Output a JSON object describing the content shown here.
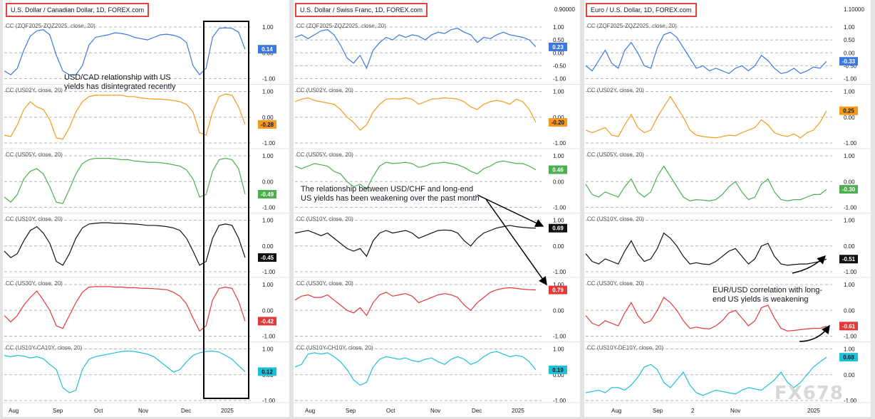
{
  "colors": {
    "ZQ": "#3c78e0",
    "US02Y": "#f39a1e",
    "US05Y": "#4caf50",
    "US10Y": "#111111",
    "US30Y": "#e2393b",
    "SPREAD": "#1ec0d6",
    "badge_text_dark": "#ffffff"
  },
  "watermark": "FX678",
  "chart_data": [
    {
      "type": "line",
      "title": "U.S. Dollar / Canadian Dollar, 1D, FOREX.com",
      "top_price": "",
      "x_ticks": [
        "Aug",
        "Sep",
        "Oct",
        "Nov",
        "Dec",
        "2025"
      ],
      "annotations": [
        "USD/CAD relationship with US",
        "yields has disintegrated recently"
      ],
      "subplots": [
        {
          "name": "CC (ZQF2025-ZQZ2025, close, 20)",
          "color_key": "ZQ",
          "ylim": [
            -1,
            1
          ],
          "ticks": [
            "1.00",
            "0.00",
            "-1.00"
          ],
          "last": "0.14",
          "values": [
            -0.7,
            -0.85,
            -0.6,
            0.1,
            0.65,
            0.85,
            0.9,
            0.7,
            -0.1,
            -0.7,
            -0.85,
            -0.85,
            -0.5,
            0.3,
            0.6,
            0.65,
            0.7,
            0.78,
            0.75,
            0.7,
            0.6,
            0.55,
            0.5,
            0.6,
            0.7,
            0.72,
            0.68,
            0.6,
            0.4,
            -0.5,
            -0.85,
            -0.6,
            0.6,
            0.95,
            0.97,
            0.95,
            0.8,
            0.14
          ]
        },
        {
          "name": "CC (US02Y, close, 20)",
          "color_key": "US02Y",
          "ylim": [
            -1,
            1
          ],
          "ticks": [
            "1.00",
            "0.00",
            "-1.00"
          ],
          "last": "-0.28",
          "values": [
            -0.7,
            -0.75,
            -0.3,
            0.3,
            0.6,
            0.4,
            0.3,
            -0.1,
            -0.8,
            -0.85,
            -0.4,
            0.2,
            0.6,
            0.8,
            0.85,
            0.85,
            0.85,
            0.85,
            0.85,
            0.8,
            0.8,
            0.75,
            0.72,
            0.7,
            0.7,
            0.68,
            0.65,
            0.6,
            0.5,
            0.2,
            -0.6,
            -0.7,
            0.2,
            0.8,
            0.9,
            0.85,
            0.4,
            -0.28
          ]
        },
        {
          "name": "CC (US05Y, close, 20)",
          "color_key": "US05Y",
          "ylim": [
            -1,
            1
          ],
          "ticks": [
            "1.00",
            "0.00",
            "-1.00"
          ],
          "last": "-0.49",
          "values": [
            -0.6,
            -0.8,
            -0.5,
            0.1,
            0.4,
            0.5,
            0.3,
            -0.2,
            -0.8,
            -0.85,
            -0.3,
            0.3,
            0.7,
            0.85,
            0.9,
            0.9,
            0.9,
            0.88,
            0.85,
            0.85,
            0.8,
            0.78,
            0.75,
            0.75,
            0.73,
            0.7,
            0.65,
            0.6,
            0.45,
            0.1,
            -0.6,
            -0.5,
            0.4,
            0.85,
            0.9,
            0.85,
            0.5,
            -0.49
          ]
        },
        {
          "name": "CC (US10Y, close, 20)",
          "color_key": "US10Y",
          "ylim": [
            -1,
            1
          ],
          "ticks": [
            "1.00",
            "0.00",
            "-1.00"
          ],
          "last": "-0.45",
          "values": [
            -0.2,
            -0.45,
            -0.3,
            0.2,
            0.6,
            0.75,
            0.5,
            0.1,
            -0.6,
            -0.75,
            -0.3,
            0.3,
            0.7,
            0.85,
            0.88,
            0.9,
            0.9,
            0.88,
            0.88,
            0.86,
            0.85,
            0.83,
            0.8,
            0.8,
            0.78,
            0.75,
            0.7,
            0.6,
            0.3,
            -0.2,
            -0.75,
            -0.6,
            0.3,
            0.8,
            0.85,
            0.8,
            0.3,
            -0.45
          ]
        },
        {
          "name": "CC (US30Y, close, 20)",
          "color_key": "US30Y",
          "ylim": [
            -1,
            1
          ],
          "ticks": [
            "1.00",
            "0.00",
            "-1.00"
          ],
          "last": "-0.42",
          "values": [
            -0.2,
            -0.45,
            -0.2,
            0.2,
            0.5,
            0.75,
            0.4,
            0.0,
            -0.6,
            -0.7,
            -0.2,
            0.3,
            0.7,
            0.9,
            0.92,
            0.92,
            0.92,
            0.9,
            0.9,
            0.88,
            0.88,
            0.86,
            0.85,
            0.84,
            0.82,
            0.8,
            0.7,
            0.55,
            0.25,
            -0.3,
            -0.8,
            -0.6,
            0.4,
            0.85,
            0.9,
            0.85,
            0.35,
            -0.42
          ]
        },
        {
          "name": "CC (US10Y-CA10Y, close, 20)",
          "color_key": "SPREAD",
          "ylim": [
            -1,
            1
          ],
          "ticks": [
            "1.00",
            "0.00",
            "-1.00"
          ],
          "last": "0.12",
          "values": [
            0.75,
            0.7,
            0.75,
            0.72,
            0.65,
            0.7,
            0.62,
            0.4,
            0.2,
            -0.5,
            -0.7,
            -0.6,
            0.2,
            0.6,
            0.7,
            0.75,
            0.8,
            0.85,
            0.9,
            0.92,
            0.9,
            0.85,
            0.8,
            0.7,
            0.5,
            0.3,
            0.1,
            0.2,
            0.5,
            0.75,
            0.85,
            0.9,
            0.92,
            0.88,
            0.75,
            0.6,
            0.35,
            0.12
          ]
        }
      ]
    },
    {
      "type": "line",
      "title": "U.S. Dollar / Swiss Franc, 1D, FOREX.com",
      "top_price": "0.90000",
      "x_ticks": [
        "Aug",
        "Sep",
        "Oct",
        "Nov",
        "Dec",
        "2025"
      ],
      "annotations": [
        "The relationship between USD/CHF and long-end",
        "US yields has been weakening over the past month"
      ],
      "subplots": [
        {
          "name": "CC (ZQF2025-ZQZ2025, close, 20)",
          "color_key": "ZQ",
          "ylim": [
            -1,
            1
          ],
          "ticks": [
            "1.00",
            "0.50",
            "0.00",
            "-0.50",
            "-1.00"
          ],
          "last": "0.23",
          "values": [
            0.6,
            0.7,
            0.55,
            0.7,
            0.85,
            0.9,
            0.7,
            0.3,
            -0.2,
            -0.4,
            -0.1,
            -0.6,
            0.1,
            0.4,
            0.6,
            0.5,
            0.7,
            0.6,
            0.7,
            0.65,
            0.5,
            0.7,
            0.8,
            0.75,
            0.9,
            0.95,
            0.8,
            0.7,
            0.4,
            0.6,
            0.55,
            0.7,
            0.8,
            0.7,
            0.65,
            0.6,
            0.5,
            0.23
          ]
        },
        {
          "name": "CC (US02Y, close, 20)",
          "color_key": "US02Y",
          "ylim": [
            -1,
            1
          ],
          "ticks": [
            "1.00",
            "0.00",
            "-1.00"
          ],
          "last": "-0.20",
          "values": [
            0.6,
            0.7,
            0.75,
            0.65,
            0.6,
            0.55,
            0.5,
            0.3,
            0.0,
            -0.2,
            -0.5,
            -0.3,
            0.2,
            0.5,
            0.7,
            0.72,
            0.7,
            0.75,
            0.7,
            0.5,
            0.6,
            0.7,
            0.72,
            0.75,
            0.73,
            0.7,
            0.6,
            0.4,
            0.3,
            0.5,
            0.6,
            0.65,
            0.6,
            0.5,
            0.7,
            0.6,
            0.3,
            -0.2
          ]
        },
        {
          "name": "CC (US05Y, close, 20)",
          "color_key": "US05Y",
          "ylim": [
            -1,
            1
          ],
          "ticks": [
            "1.00",
            "0.00",
            "-1.00"
          ],
          "last": "0.46",
          "values": [
            0.6,
            0.5,
            0.6,
            0.7,
            0.65,
            0.6,
            0.4,
            0.3,
            0.0,
            -0.2,
            -0.1,
            -0.3,
            0.2,
            0.6,
            0.75,
            0.7,
            0.72,
            0.75,
            0.7,
            0.55,
            0.6,
            0.7,
            0.72,
            0.75,
            0.7,
            0.65,
            0.55,
            0.4,
            0.3,
            0.5,
            0.6,
            0.75,
            0.8,
            0.75,
            0.7,
            0.7,
            0.6,
            0.46
          ]
        },
        {
          "name": "CC (US10Y, close, 20)",
          "color_key": "US10Y",
          "ylim": [
            -1,
            1
          ],
          "ticks": [
            "1.00",
            "0.00",
            "-1.00"
          ],
          "last": "0.69",
          "values": [
            0.5,
            0.55,
            0.6,
            0.5,
            0.4,
            0.5,
            0.3,
            0.1,
            -0.1,
            -0.2,
            -0.1,
            -0.4,
            0.2,
            0.5,
            0.6,
            0.5,
            0.55,
            0.6,
            0.5,
            0.3,
            0.4,
            0.5,
            0.6,
            0.62,
            0.6,
            0.5,
            0.2,
            0.0,
            0.3,
            0.5,
            0.6,
            0.7,
            0.75,
            0.8,
            0.75,
            0.72,
            0.7,
            0.69
          ]
        },
        {
          "name": "CC (US30Y, close, 20)",
          "color_key": "US30Y",
          "ylim": [
            -1,
            1
          ],
          "ticks": [
            "1.00",
            "0.00",
            "-1.00"
          ],
          "last": "0.79",
          "values": [
            0.4,
            0.55,
            0.6,
            0.5,
            0.5,
            0.6,
            0.4,
            0.2,
            0.0,
            -0.1,
            0.1,
            -0.2,
            0.3,
            0.6,
            0.7,
            0.55,
            0.6,
            0.65,
            0.55,
            0.3,
            0.4,
            0.5,
            0.6,
            0.65,
            0.6,
            0.5,
            0.2,
            0.0,
            0.3,
            0.5,
            0.7,
            0.8,
            0.85,
            0.88,
            0.85,
            0.82,
            0.8,
            0.79
          ]
        },
        {
          "name": "CC (US10Y-CH10Y, close, 20)",
          "color_key": "SPREAD",
          "ylim": [
            -1,
            1
          ],
          "ticks": [
            "1.00",
            "0.00",
            "-1.00"
          ],
          "last": "0.19",
          "values": [
            0.3,
            0.4,
            0.8,
            0.85,
            0.8,
            0.85,
            0.7,
            0.5,
            0.2,
            -0.2,
            -0.4,
            -0.3,
            0.3,
            0.6,
            0.7,
            0.65,
            0.6,
            0.65,
            0.55,
            0.5,
            0.6,
            0.65,
            0.5,
            0.4,
            0.6,
            0.7,
            0.6,
            0.4,
            0.5,
            0.7,
            0.85,
            0.9,
            0.8,
            0.7,
            0.75,
            0.7,
            0.5,
            0.19
          ]
        }
      ]
    },
    {
      "type": "line",
      "title": "Euro / U.S. Dollar, 1D, FOREX.com",
      "top_price": "1.10000",
      "x_ticks": [
        "Aug",
        "Sep",
        "2",
        "Nov",
        "2025"
      ],
      "annotations": [
        "EUR/USD correlation with long-",
        "end US yields is weakening"
      ],
      "subplots": [
        {
          "name": "CC (ZQF2025-ZQZ2025, close, 20)",
          "color_key": "ZQ",
          "ylim": [
            -1,
            1
          ],
          "ticks": [
            "1.00",
            "0.50",
            "0.00",
            "-0.50",
            "-1.00"
          ],
          "last": "-0.33",
          "values": [
            -0.5,
            -0.7,
            -0.3,
            0.1,
            -0.4,
            -0.6,
            0.1,
            0.4,
            0.0,
            -0.5,
            -0.6,
            0.2,
            0.7,
            0.8,
            0.6,
            0.2,
            -0.2,
            -0.6,
            -0.5,
            -0.7,
            -0.6,
            -0.7,
            -0.8,
            -0.6,
            -0.5,
            -0.7,
            -0.5,
            -0.1,
            -0.3,
            -0.6,
            -0.8,
            -0.75,
            -0.6,
            -0.8,
            -0.7,
            -0.55,
            -0.6,
            -0.33
          ]
        },
        {
          "name": "CC (US02Y, close, 20)",
          "color_key": "US02Y",
          "ylim": [
            -1,
            1
          ],
          "ticks": [
            "1.00",
            "0.00",
            "-1.00"
          ],
          "last": "0.25",
          "values": [
            -0.5,
            -0.6,
            -0.5,
            -0.4,
            -0.7,
            -0.75,
            -0.3,
            0.1,
            -0.4,
            -0.6,
            -0.5,
            0.0,
            0.4,
            0.8,
            0.4,
            0.0,
            -0.5,
            -0.7,
            -0.75,
            -0.78,
            -0.8,
            -0.75,
            -0.7,
            -0.72,
            -0.6,
            -0.5,
            -0.4,
            -0.1,
            -0.3,
            -0.6,
            -0.7,
            -0.75,
            -0.65,
            -0.8,
            -0.6,
            -0.5,
            -0.2,
            0.25
          ]
        },
        {
          "name": "CC (US05Y, close, 20)",
          "color_key": "US05Y",
          "ylim": [
            -1,
            1
          ],
          "ticks": [
            "1.00",
            "0.00",
            "-1.00"
          ],
          "last": "-0.30",
          "values": [
            -0.1,
            -0.5,
            -0.6,
            -0.4,
            -0.5,
            -0.6,
            -0.2,
            0.1,
            -0.4,
            -0.6,
            -0.4,
            0.2,
            0.6,
            0.2,
            -0.2,
            -0.6,
            -0.75,
            -0.7,
            -0.72,
            -0.75,
            -0.7,
            -0.5,
            -0.2,
            0.0,
            -0.4,
            -0.7,
            -0.6,
            -0.1,
            0.1,
            -0.4,
            -0.7,
            -0.75,
            -0.7,
            -0.7,
            -0.6,
            -0.5,
            -0.5,
            -0.3
          ]
        },
        {
          "name": "CC (US10Y, close, 20)",
          "color_key": "US10Y",
          "ylim": [
            -1,
            1
          ],
          "ticks": [
            "1.00",
            "0.00",
            "-1.00"
          ],
          "last": "-0.51",
          "values": [
            -0.3,
            -0.6,
            -0.7,
            -0.5,
            -0.6,
            -0.7,
            -0.2,
            0.2,
            -0.3,
            -0.6,
            -0.5,
            -0.1,
            0.5,
            0.3,
            0.0,
            -0.4,
            -0.7,
            -0.65,
            -0.7,
            -0.72,
            -0.6,
            -0.4,
            -0.2,
            -0.1,
            -0.4,
            -0.7,
            -0.5,
            0.0,
            0.1,
            -0.4,
            -0.7,
            -0.75,
            -0.72,
            -0.7,
            -0.7,
            -0.65,
            -0.6,
            -0.51
          ]
        },
        {
          "name": "CC (US30Y, close, 20)",
          "color_key": "US30Y",
          "ylim": [
            -1,
            1
          ],
          "ticks": [
            "1.00",
            "0.00",
            "-1.00"
          ],
          "last": "-0.61",
          "values": [
            -0.2,
            -0.5,
            -0.6,
            -0.4,
            -0.5,
            -0.6,
            -0.1,
            0.3,
            -0.2,
            -0.5,
            -0.4,
            0.0,
            0.5,
            0.3,
            0.0,
            -0.4,
            -0.7,
            -0.65,
            -0.7,
            -0.72,
            -0.6,
            -0.4,
            -0.1,
            0.0,
            -0.3,
            -0.6,
            -0.4,
            0.1,
            0.2,
            -0.3,
            -0.7,
            -0.8,
            -0.78,
            -0.75,
            -0.72,
            -0.7,
            -0.7,
            -0.61
          ]
        },
        {
          "name": "CC (US10Y-DE10Y, close, 20)",
          "color_key": "SPREAD",
          "ylim": [
            -1,
            1
          ],
          "ticks": [
            "1.00",
            "0.00",
            "-1.00"
          ],
          "last": "0.68",
          "values": [
            -0.7,
            -0.65,
            -0.6,
            -0.7,
            -0.5,
            -0.5,
            -0.6,
            -0.4,
            -0.1,
            0.3,
            0.4,
            0.2,
            -0.3,
            -0.5,
            -0.2,
            0.1,
            -0.4,
            -0.7,
            -0.8,
            -0.7,
            -0.6,
            -0.65,
            -0.7,
            -0.75,
            -0.6,
            -0.5,
            -0.55,
            -0.6,
            -0.4,
            -0.2,
            0.1,
            -0.3,
            -0.5,
            -0.3,
            0.0,
            0.3,
            0.5,
            0.68
          ]
        }
      ]
    }
  ]
}
